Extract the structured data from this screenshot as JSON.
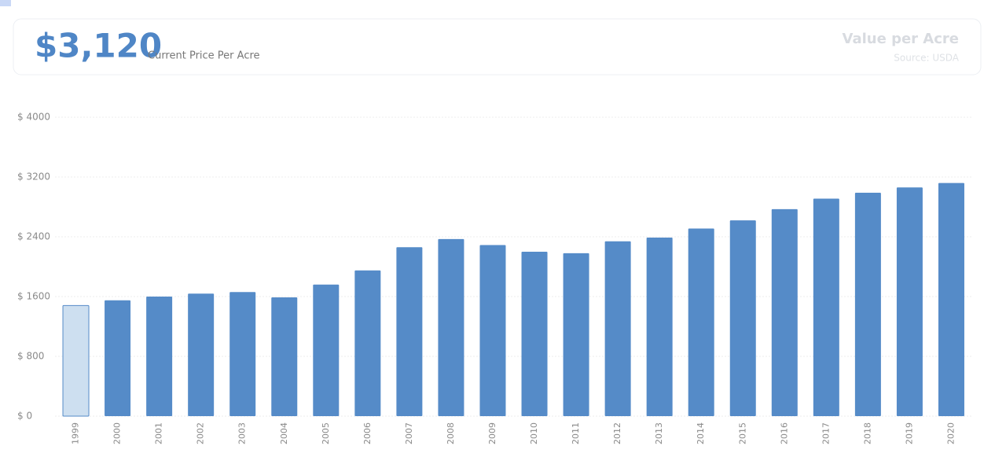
{
  "header": {
    "value": "$3,120",
    "label": "Current Price Per Acre",
    "title": "Value per Acre",
    "source": "Source: USDA"
  },
  "chart_data": {
    "type": "bar",
    "categories": [
      "1999",
      "2000",
      "2001",
      "2002",
      "2003",
      "2004",
      "2005",
      "2006",
      "2007",
      "2008",
      "2009",
      "2010",
      "2011",
      "2012",
      "2013",
      "2014",
      "2015",
      "2016",
      "2017",
      "2018",
      "2019",
      "2020"
    ],
    "values": [
      1480,
      1550,
      1600,
      1640,
      1660,
      1590,
      1760,
      1950,
      2260,
      2370,
      2290,
      2200,
      2180,
      2340,
      2390,
      2510,
      2620,
      2770,
      2910,
      2990,
      3060,
      3120
    ],
    "color": "#558bc8",
    "bar_colors": [
      "#cddff0",
      "#558bc8",
      "#558bc8",
      "#558bc8",
      "#558bc8",
      "#558bc8",
      "#558bc8",
      "#558bc8",
      "#558bc8",
      "#558bc8",
      "#558bc8",
      "#558bc8",
      "#558bc8",
      "#558bc8",
      "#558bc8",
      "#558bc8",
      "#558bc8",
      "#558bc8",
      "#558bc8",
      "#558bc8",
      "#558bc8",
      "#558bc8"
    ],
    "ylim": [
      0,
      4000
    ],
    "yticks": [
      {
        "value": 0,
        "label": "$ 0"
      },
      {
        "value": 800,
        "label": "$ 800"
      },
      {
        "value": 1600,
        "label": "$ 1600"
      },
      {
        "value": 2400,
        "label": "$ 2400"
      },
      {
        "value": 3200,
        "label": "$ 3200"
      },
      {
        "value": 4000,
        "label": "$ 4000"
      }
    ],
    "grid": true
  }
}
